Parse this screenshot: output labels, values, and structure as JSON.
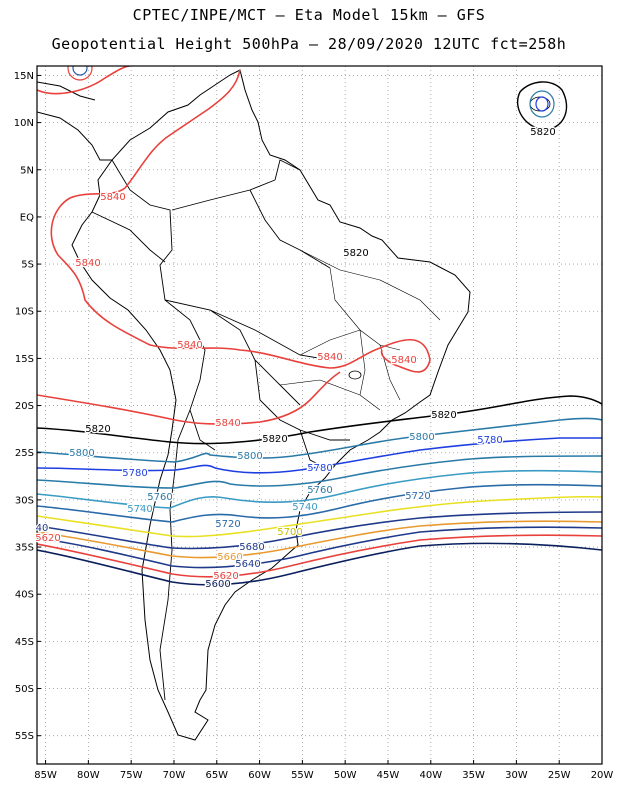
{
  "title": {
    "line1": "CPTEC/INPE/MCT –  Eta Model 15km – GFS",
    "line2": "Geopotential Height 500hPa – 28/09/2020 12UTC fct=258h"
  },
  "axes": {
    "lat_labels": [
      "15N",
      "10N",
      "5N",
      "EQ",
      "5S",
      "10S",
      "15S",
      "20S",
      "25S",
      "30S",
      "35S",
      "40S",
      "45S",
      "50S",
      "55S"
    ],
    "lat_values": [
      15,
      10,
      5,
      0,
      -5,
      -10,
      -15,
      -20,
      -25,
      -30,
      -35,
      -40,
      -45,
      -50,
      -55
    ],
    "lon_labels": [
      "85W",
      "80W",
      "75W",
      "70W",
      "65W",
      "60W",
      "55W",
      "50W",
      "45W",
      "40W",
      "35W",
      "30W",
      "25W",
      "20W"
    ],
    "lon_values": [
      -85,
      -80,
      -75,
      -70,
      -65,
      -60,
      -55,
      -50,
      -45,
      -40,
      -35,
      -30,
      -25,
      -20
    ],
    "lon_range": [
      -86,
      -20
    ],
    "lat_range": [
      -58,
      16
    ]
  },
  "contours": [
    {
      "level": "5840",
      "color": "#e8413c"
    },
    {
      "level": "5820",
      "color": "#000000"
    },
    {
      "level": "5800",
      "color": "#2a7aa8"
    },
    {
      "level": "5780",
      "color": "#1e3fe0"
    },
    {
      "level": "5760",
      "color": "#2a7aa8"
    },
    {
      "level": "5740",
      "color": "#3a9bc4"
    },
    {
      "level": "5720",
      "color": "#2a6aa8"
    },
    {
      "level": "5700",
      "color": "#e8e020"
    },
    {
      "level": "5680",
      "color": "#1f3a8a"
    },
    {
      "level": "5660",
      "color": "#e89a30"
    },
    {
      "level": "5640",
      "color": "#1f3a8a"
    },
    {
      "level": "5620",
      "color": "#e8413c"
    },
    {
      "level": "5600",
      "color": "#0a1f5c"
    }
  ],
  "labels": [
    {
      "text": "5840",
      "color": "#e8413c"
    },
    {
      "text": "5840",
      "color": "#e8413c"
    },
    {
      "text": "5840",
      "color": "#e8413c"
    },
    {
      "text": "5840",
      "color": "#e8413c"
    },
    {
      "text": "5840",
      "color": "#e8413c"
    },
    {
      "text": "5840",
      "color": "#e8413c"
    },
    {
      "text": "5820",
      "color": "#000000"
    },
    {
      "text": "5820",
      "color": "#000000"
    },
    {
      "text": "5820",
      "color": "#000000"
    },
    {
      "text": "5820",
      "color": "#000000"
    },
    {
      "text": "5820",
      "color": "#000000"
    },
    {
      "text": "5800",
      "color": "#2a7aa8"
    },
    {
      "text": "5800",
      "color": "#2a7aa8"
    },
    {
      "text": "5800",
      "color": "#2a7aa8"
    },
    {
      "text": "5780",
      "color": "#1e3fe0"
    },
    {
      "text": "5780",
      "color": "#1e3fe0"
    },
    {
      "text": "5780",
      "color": "#1e3fe0"
    },
    {
      "text": "5760",
      "color": "#2a7aa8"
    },
    {
      "text": "5760",
      "color": "#2a7aa8"
    },
    {
      "text": "5740",
      "color": "#3a9bc4"
    },
    {
      "text": "5740",
      "color": "#3a9bc4"
    },
    {
      "text": "5720",
      "color": "#2a6aa8"
    },
    {
      "text": "5720",
      "color": "#2a6aa8"
    },
    {
      "text": "5700",
      "color": "#c8c000"
    },
    {
      "text": "5680",
      "color": "#1f3a8a"
    },
    {
      "text": "5660",
      "color": "#e89a30"
    },
    {
      "text": "5640",
      "color": "#1f3a8a"
    },
    {
      "text": "5620",
      "color": "#e8413c"
    },
    {
      "text": "5620",
      "color": "#e8413c"
    },
    {
      "text": "5600",
      "color": "#0a1f5c"
    },
    {
      "text": "40",
      "color": "#1f3a8a"
    }
  ]
}
